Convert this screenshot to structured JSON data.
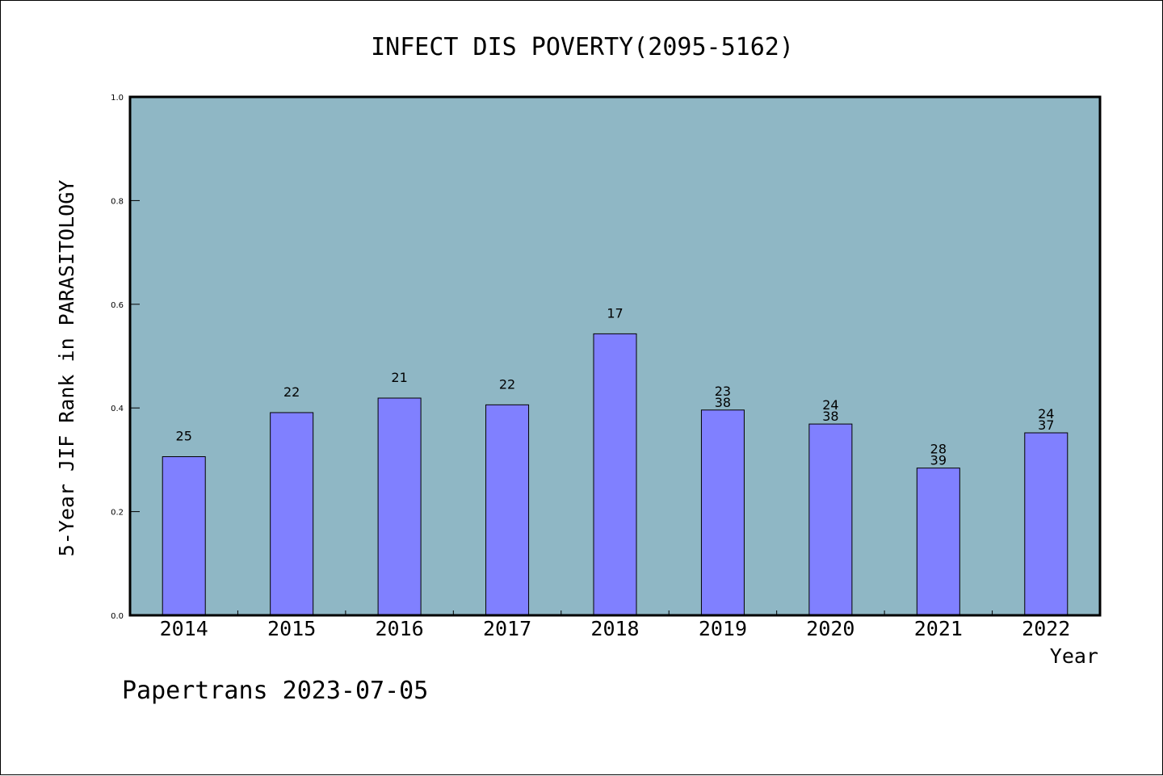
{
  "chart_data": {
    "type": "bar",
    "title": "INFECT DIS POVERTY(2095-5162)",
    "xlabel": "Year",
    "ylabel": "5-Year JIF Rank in PARASITOLOGY",
    "ylim": [
      0.0,
      1.0
    ],
    "yticks": [
      "0.0",
      "0.2",
      "0.4",
      "0.6",
      "0.8",
      "1.0"
    ],
    "categories": [
      "2014",
      "2015",
      "2016",
      "2017",
      "2018",
      "2019",
      "2020",
      "2021",
      "2022"
    ],
    "values": [
      0.306,
      0.391,
      0.419,
      0.406,
      0.543,
      0.396,
      0.369,
      0.284,
      0.352
    ],
    "bar_labels": [
      [
        "25"
      ],
      [
        "22"
      ],
      [
        "21"
      ],
      [
        "22"
      ],
      [
        "17"
      ],
      [
        "23",
        "38"
      ],
      [
        "24",
        "38"
      ],
      [
        "28",
        "39"
      ],
      [
        "24",
        "37"
      ]
    ],
    "grid": false,
    "colors": {
      "plot_bg": "#8fb7c5",
      "bar": "#8080ff"
    }
  },
  "footer": "Papertrans 2023-07-05"
}
